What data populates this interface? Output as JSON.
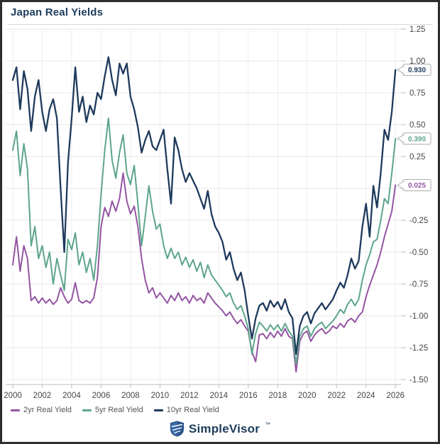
{
  "header": {
    "title": "Japan Real Yields"
  },
  "footer": {
    "brand": "SimpleVisor",
    "trademark": "™"
  },
  "colors": {
    "navy": "#1e3a5c",
    "green": "#5ea58b",
    "purple": "#9455a3",
    "title_text": "#1d3c5b",
    "axis_text": "#474747",
    "legend_text": "#555555",
    "grid": "#e7e7e7",
    "grid_vertical": "#efefef",
    "axis_line": "#bbbbbb",
    "callout_border": "#ababab",
    "logo_blue": "#3a6cab",
    "logo_dark": "#24487c"
  },
  "chart_data": {
    "type": "line",
    "title": "Japan Real Yields",
    "xlabel": "",
    "ylabel": "",
    "x_start": 2000,
    "x_step": 0.25,
    "xlim": [
      1999.5,
      2027.4
    ],
    "ylim": [
      -1.55,
      1.28
    ],
    "grid": true,
    "legend_position": "bottom-left",
    "x_ticks": [
      2000,
      2002,
      2004,
      2006,
      2008,
      2010,
      2012,
      2014,
      2016,
      2018,
      2020,
      2022,
      2024,
      2026
    ],
    "x_tick_labels": [
      "2000",
      "2002",
      "2004",
      "2006",
      "2008",
      "2010",
      "2012",
      "2014",
      "2016",
      "2018",
      "2020",
      "2022",
      "2024",
      "2026"
    ],
    "y_ticks": [
      1.25,
      1.0,
      0.75,
      0.5,
      0.25,
      0.0,
      -0.25,
      -0.5,
      -0.75,
      -1.0,
      -1.25,
      -1.5
    ],
    "y_tick_labels": [
      "1.25",
      "1.00",
      "0.75",
      "0.50",
      "0.25",
      "0.00",
      "-0.25",
      "-0.50",
      "-0.75",
      "-1.00",
      "-1.25",
      "-1.50"
    ],
    "series": [
      {
        "name": "2yr Real Yield",
        "color_key": "purple",
        "last_label": "0.025",
        "values": [
          -0.6,
          -0.38,
          -0.65,
          -0.45,
          -0.55,
          -0.88,
          -0.85,
          -0.9,
          -0.86,
          -0.9,
          -0.87,
          -0.91,
          -0.88,
          -0.78,
          -0.85,
          -0.9,
          -0.87,
          -0.74,
          -0.88,
          -0.9,
          -0.88,
          -0.9,
          -0.86,
          -0.7,
          -0.3,
          -0.15,
          -0.22,
          -0.1,
          -0.18,
          -0.08,
          0.12,
          -0.1,
          -0.2,
          -0.14,
          -0.3,
          -0.55,
          -0.72,
          -0.82,
          -0.78,
          -0.86,
          -0.82,
          -0.86,
          -0.9,
          -0.84,
          -0.88,
          -0.82,
          -0.88,
          -0.85,
          -0.9,
          -0.84,
          -0.88,
          -0.86,
          -0.9,
          -0.82,
          -0.86,
          -0.9,
          -0.93,
          -0.96,
          -1.0,
          -0.97,
          -1.02,
          -1.06,
          -1.03,
          -1.08,
          -1.12,
          -1.28,
          -1.36,
          -1.15,
          -1.14,
          -1.18,
          -1.13,
          -1.17,
          -1.12,
          -1.16,
          -1.1,
          -1.16,
          -1.18,
          -1.44,
          -1.2,
          -1.14,
          -1.12,
          -1.2,
          -1.15,
          -1.12,
          -1.1,
          -1.14,
          -1.12,
          -1.08,
          -1.1,
          -1.06,
          -1.09,
          -1.04,
          -1.02,
          -1.05,
          -1.0,
          -0.97,
          -0.85,
          -0.76,
          -0.68,
          -0.6,
          -0.5,
          -0.38,
          -0.28,
          -0.18,
          0.025
        ]
      },
      {
        "name": "5yr Real Yield",
        "color_key": "green",
        "last_label": "0.390",
        "values": [
          0.3,
          0.45,
          0.1,
          0.35,
          0.15,
          -0.45,
          -0.3,
          -0.55,
          -0.45,
          -0.62,
          -0.5,
          -0.75,
          -0.55,
          -0.68,
          -0.8,
          -0.4,
          -0.48,
          -0.35,
          -0.6,
          -0.5,
          -0.66,
          -0.55,
          -0.72,
          -0.45,
          -0.05,
          0.3,
          0.55,
          0.22,
          0.08,
          0.28,
          0.42,
          0.12,
          0.03,
          0.18,
          -0.12,
          -0.45,
          -0.22,
          0.02,
          -0.18,
          -0.32,
          -0.28,
          -0.45,
          -0.55,
          -0.47,
          -0.55,
          -0.5,
          -0.6,
          -0.54,
          -0.62,
          -0.56,
          -0.65,
          -0.58,
          -0.7,
          -0.6,
          -0.68,
          -0.72,
          -0.76,
          -0.8,
          -0.85,
          -0.82,
          -0.9,
          -0.95,
          -0.92,
          -1.0,
          -1.1,
          -1.3,
          -1.14,
          -1.05,
          -1.08,
          -1.12,
          -1.07,
          -1.11,
          -1.07,
          -1.12,
          -1.06,
          -1.12,
          -1.16,
          -1.38,
          -1.16,
          -1.1,
          -1.08,
          -1.16,
          -1.1,
          -1.07,
          -1.05,
          -1.1,
          -1.07,
          -1.04,
          -1.0,
          -0.95,
          -0.98,
          -0.91,
          -0.87,
          -0.92,
          -0.87,
          -0.72,
          -0.6,
          -0.52,
          -0.42,
          -0.4,
          -0.25,
          -0.08,
          -0.12,
          0.12,
          0.39
        ]
      },
      {
        "name": "10yr Real Yield",
        "color_key": "navy",
        "last_label": "0.930",
        "values": [
          0.85,
          0.95,
          0.62,
          0.92,
          0.78,
          0.45,
          0.72,
          0.85,
          0.6,
          0.45,
          0.62,
          0.7,
          0.55,
          0.0,
          -0.5,
          0.2,
          0.55,
          0.95,
          0.6,
          0.72,
          0.52,
          0.65,
          0.58,
          0.75,
          0.7,
          0.88,
          1.03,
          0.85,
          0.73,
          0.98,
          0.9,
          0.98,
          0.72,
          0.62,
          0.48,
          0.28,
          0.38,
          0.45,
          0.33,
          0.3,
          0.38,
          0.46,
          0.15,
          -0.12,
          0.4,
          0.3,
          0.15,
          0.05,
          0.12,
          0.06,
          0.0,
          -0.08,
          -0.16,
          -0.02,
          -0.2,
          -0.3,
          -0.35,
          -0.42,
          -0.56,
          -0.5,
          -0.63,
          -0.72,
          -0.66,
          -0.8,
          -1.0,
          -1.18,
          -1.02,
          -0.92,
          -0.9,
          -0.96,
          -0.88,
          -0.93,
          -0.89,
          -0.95,
          -0.87,
          -0.97,
          -1.02,
          -1.3,
          -1.08,
          -1.0,
          -0.97,
          -1.06,
          -0.98,
          -0.94,
          -0.9,
          -0.95,
          -0.91,
          -0.87,
          -0.8,
          -0.74,
          -0.78,
          -0.68,
          -0.55,
          -0.63,
          -0.57,
          -0.3,
          -0.12,
          -0.38,
          0.02,
          -0.15,
          0.12,
          0.46,
          0.38,
          0.6,
          0.93
        ]
      }
    ]
  }
}
